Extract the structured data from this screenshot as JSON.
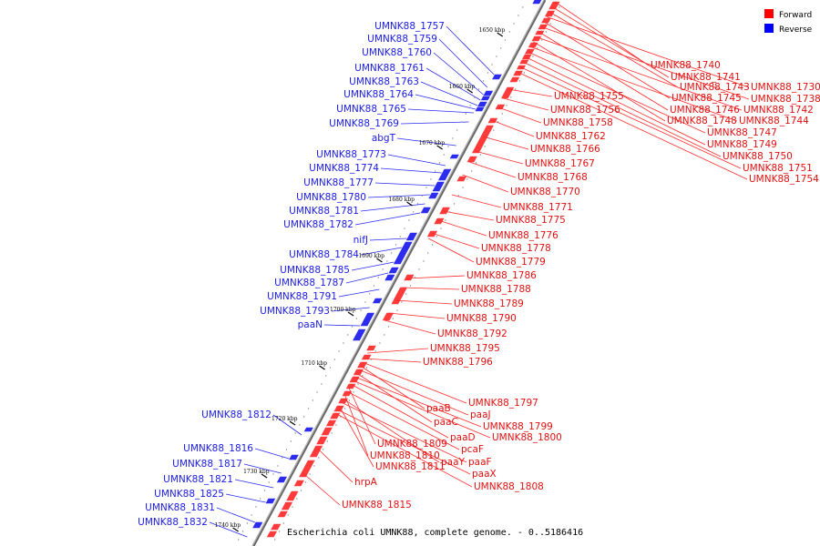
{
  "legend": {
    "forward_label": "Forward",
    "reverse_label": "Reverse",
    "forward_color": "#ff0000",
    "reverse_color": "#0000ff"
  },
  "caption": "Escherichia coli UMNK88, complete genome. - 0..5186416",
  "ticks": [
    "1650 kbp",
    "1660 kbp",
    "1670 kbp",
    "1680 kbp",
    "1690 kbp",
    "1700 kbp",
    "1710 kbp",
    "1720 kbp",
    "1730 kbp",
    "1740 kbp"
  ],
  "reverse_labels": [
    "UMNK88_1757",
    "UMNK88_1759",
    "UMNK88_1760",
    "UMNK88_1761",
    "UMNK88_1763",
    "UMNK88_1764",
    "UMNK88_1765",
    "UMNK88_1769",
    "abgT",
    "UMNK88_1773",
    "UMNK88_1774",
    "UMNK88_1777",
    "UMNK88_1780",
    "UMNK88_1781",
    "UMNK88_1782",
    "nifJ",
    "UMNK88_1784",
    "UMNK88_1785",
    "UMNK88_1787",
    "UMNK88_1791",
    "UMNK88_1793",
    "paaN",
    "UMNK88_1812",
    "UMNK88_1816",
    "UMNK88_1817",
    "UMNK88_1821",
    "UMNK88_1825",
    "UMNK88_1831",
    "UMNK88_1832"
  ],
  "forward_labels_far": [
    "UMNK88_1740",
    "UMNK88_1741",
    "UMNK88_1743",
    "UMNK88_1730",
    "UMNK88_1745",
    "UMNK88_1738",
    "UMNK88_1746",
    "UMNK88_1742",
    "UMNK88_1748",
    "UMNK88_1744",
    "UMNK88_1747",
    "UMNK88_1749",
    "UMNK88_1750",
    "UMNK88_1751",
    "UMNK88_1754"
  ],
  "forward_labels_near": [
    "UMNK88_1755",
    "UMNK88_1756",
    "UMNK88_1758",
    "UMNK88_1762",
    "UMNK88_1766",
    "UMNK88_1767",
    "UMNK88_1768",
    "UMNK88_1770",
    "UMNK88_1771",
    "UMNK88_1775",
    "UMNK88_1776",
    "UMNK88_1778",
    "UMNK88_1779",
    "UMNK88_1786",
    "UMNK88_1788",
    "UMNK88_1789",
    "UMNK88_1790",
    "UMNK88_1792",
    "UMNK88_1795",
    "UMNK88_1796"
  ],
  "forward_labels_lower": [
    "UMNK88_1797",
    "paaB",
    "paaJ",
    "paaC",
    "UMNK88_1799",
    "UMNK88_1800",
    "paaD",
    "UMNK88_1809",
    "pcaF",
    "UMNK88_1810",
    "paaY",
    "paaF",
    "UMNK88_1811",
    "paaX",
    "UMNK88_1808",
    "hrpA",
    "UMNK88_1815"
  ]
}
